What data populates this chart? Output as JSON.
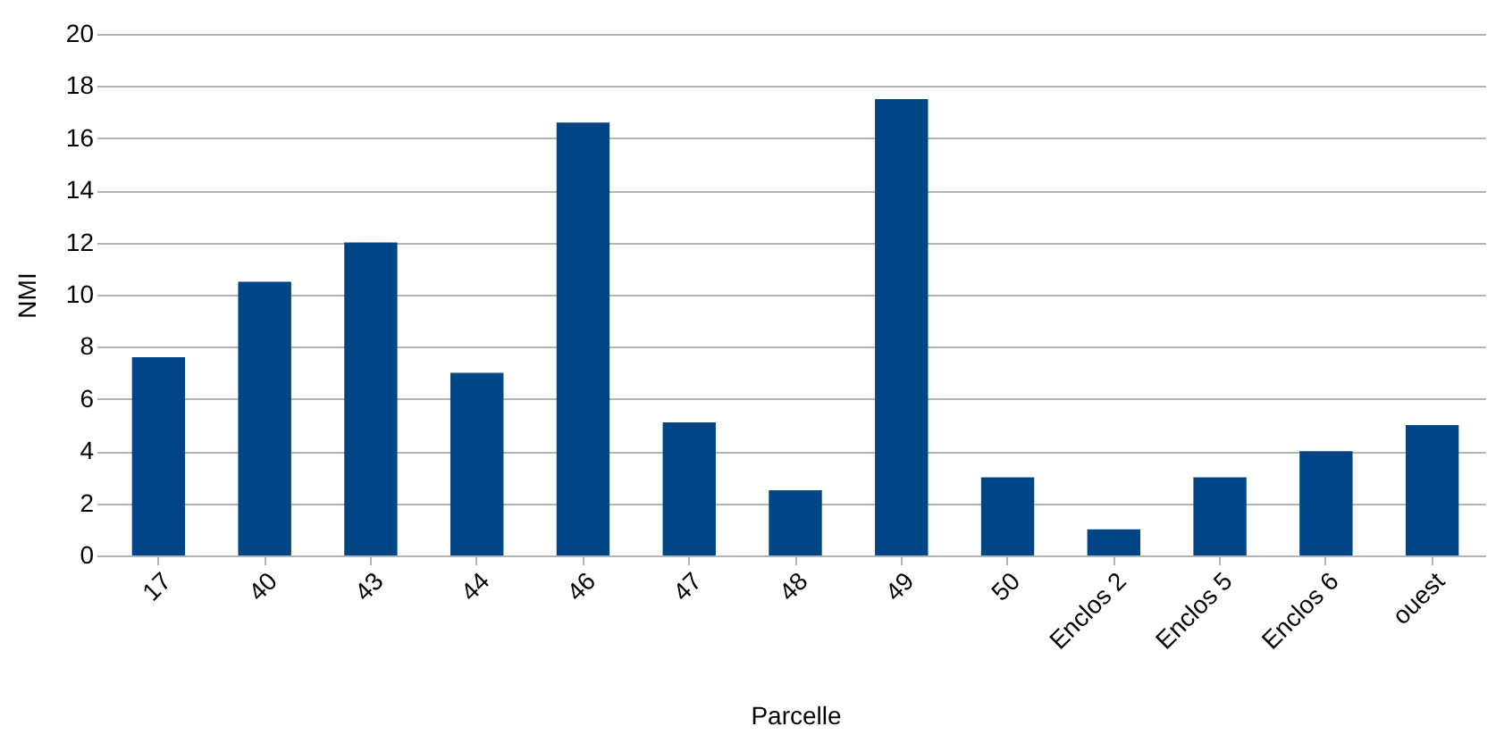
{
  "chart_data": {
    "type": "bar",
    "xlabel": "Parcelle",
    "ylabel": "NMI",
    "categories": [
      "17",
      "40",
      "43",
      "44",
      "46",
      "47",
      "48",
      "49",
      "50",
      "Enclos 2",
      "Enclos 5",
      "Enclos 6",
      "ouest"
    ],
    "values": [
      7.6,
      10.5,
      12,
      7,
      16.6,
      5.1,
      2.5,
      17.5,
      3,
      1,
      3,
      4,
      5
    ],
    "color": "#004586",
    "ylim": [
      0,
      20
    ],
    "yticks": [
      0,
      2,
      4,
      6,
      8,
      10,
      12,
      14,
      16,
      18,
      20
    ],
    "grid": "y"
  }
}
